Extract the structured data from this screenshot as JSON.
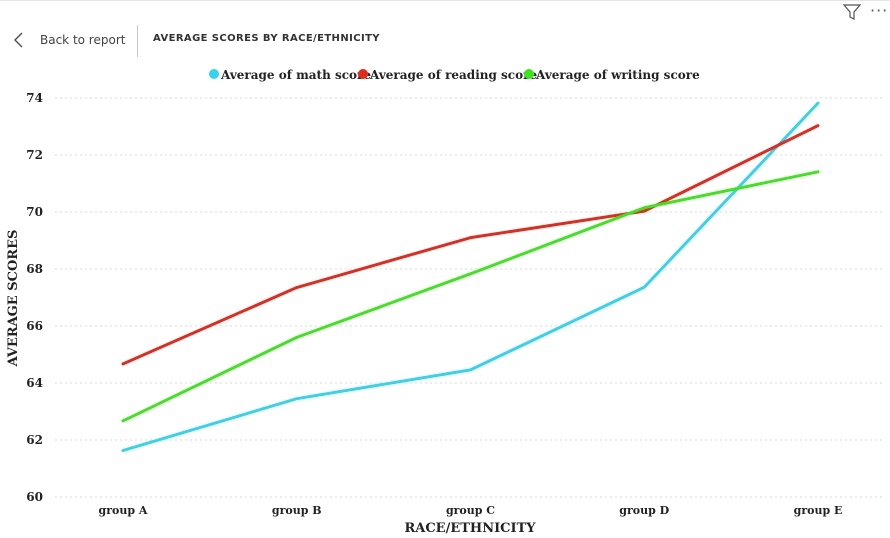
{
  "header": {
    "back_label": "Back to report",
    "page_title": "AVERAGE SCORES BY RACE/ETHNICITY"
  },
  "icons": {
    "back": "chevron-left-icon",
    "filter": "filter-icon",
    "more": "more-options-icon"
  },
  "chart_data": {
    "type": "line",
    "categories": [
      "group A",
      "group B",
      "group C",
      "group D",
      "group E"
    ],
    "series": [
      {
        "name": "Average of math score",
        "color": "#30d5f0",
        "values": [
          61.63,
          63.45,
          64.46,
          67.36,
          73.82
        ]
      },
      {
        "name": "Average of reading score",
        "color": "#e8281a",
        "values": [
          64.67,
          67.35,
          69.1,
          70.03,
          73.03
        ]
      },
      {
        "name": "Average of writing score",
        "color": "#3ae81a",
        "values": [
          62.67,
          65.6,
          67.83,
          70.15,
          71.41
        ]
      }
    ],
    "xlabel": "RACE/ETHNICITY",
    "ylabel": "AVERAGE SCORES",
    "ylim": [
      60,
      74
    ],
    "yticks": [
      60,
      62,
      64,
      66,
      68,
      70,
      72,
      74
    ],
    "grid": true,
    "legend_position": "top-center"
  }
}
